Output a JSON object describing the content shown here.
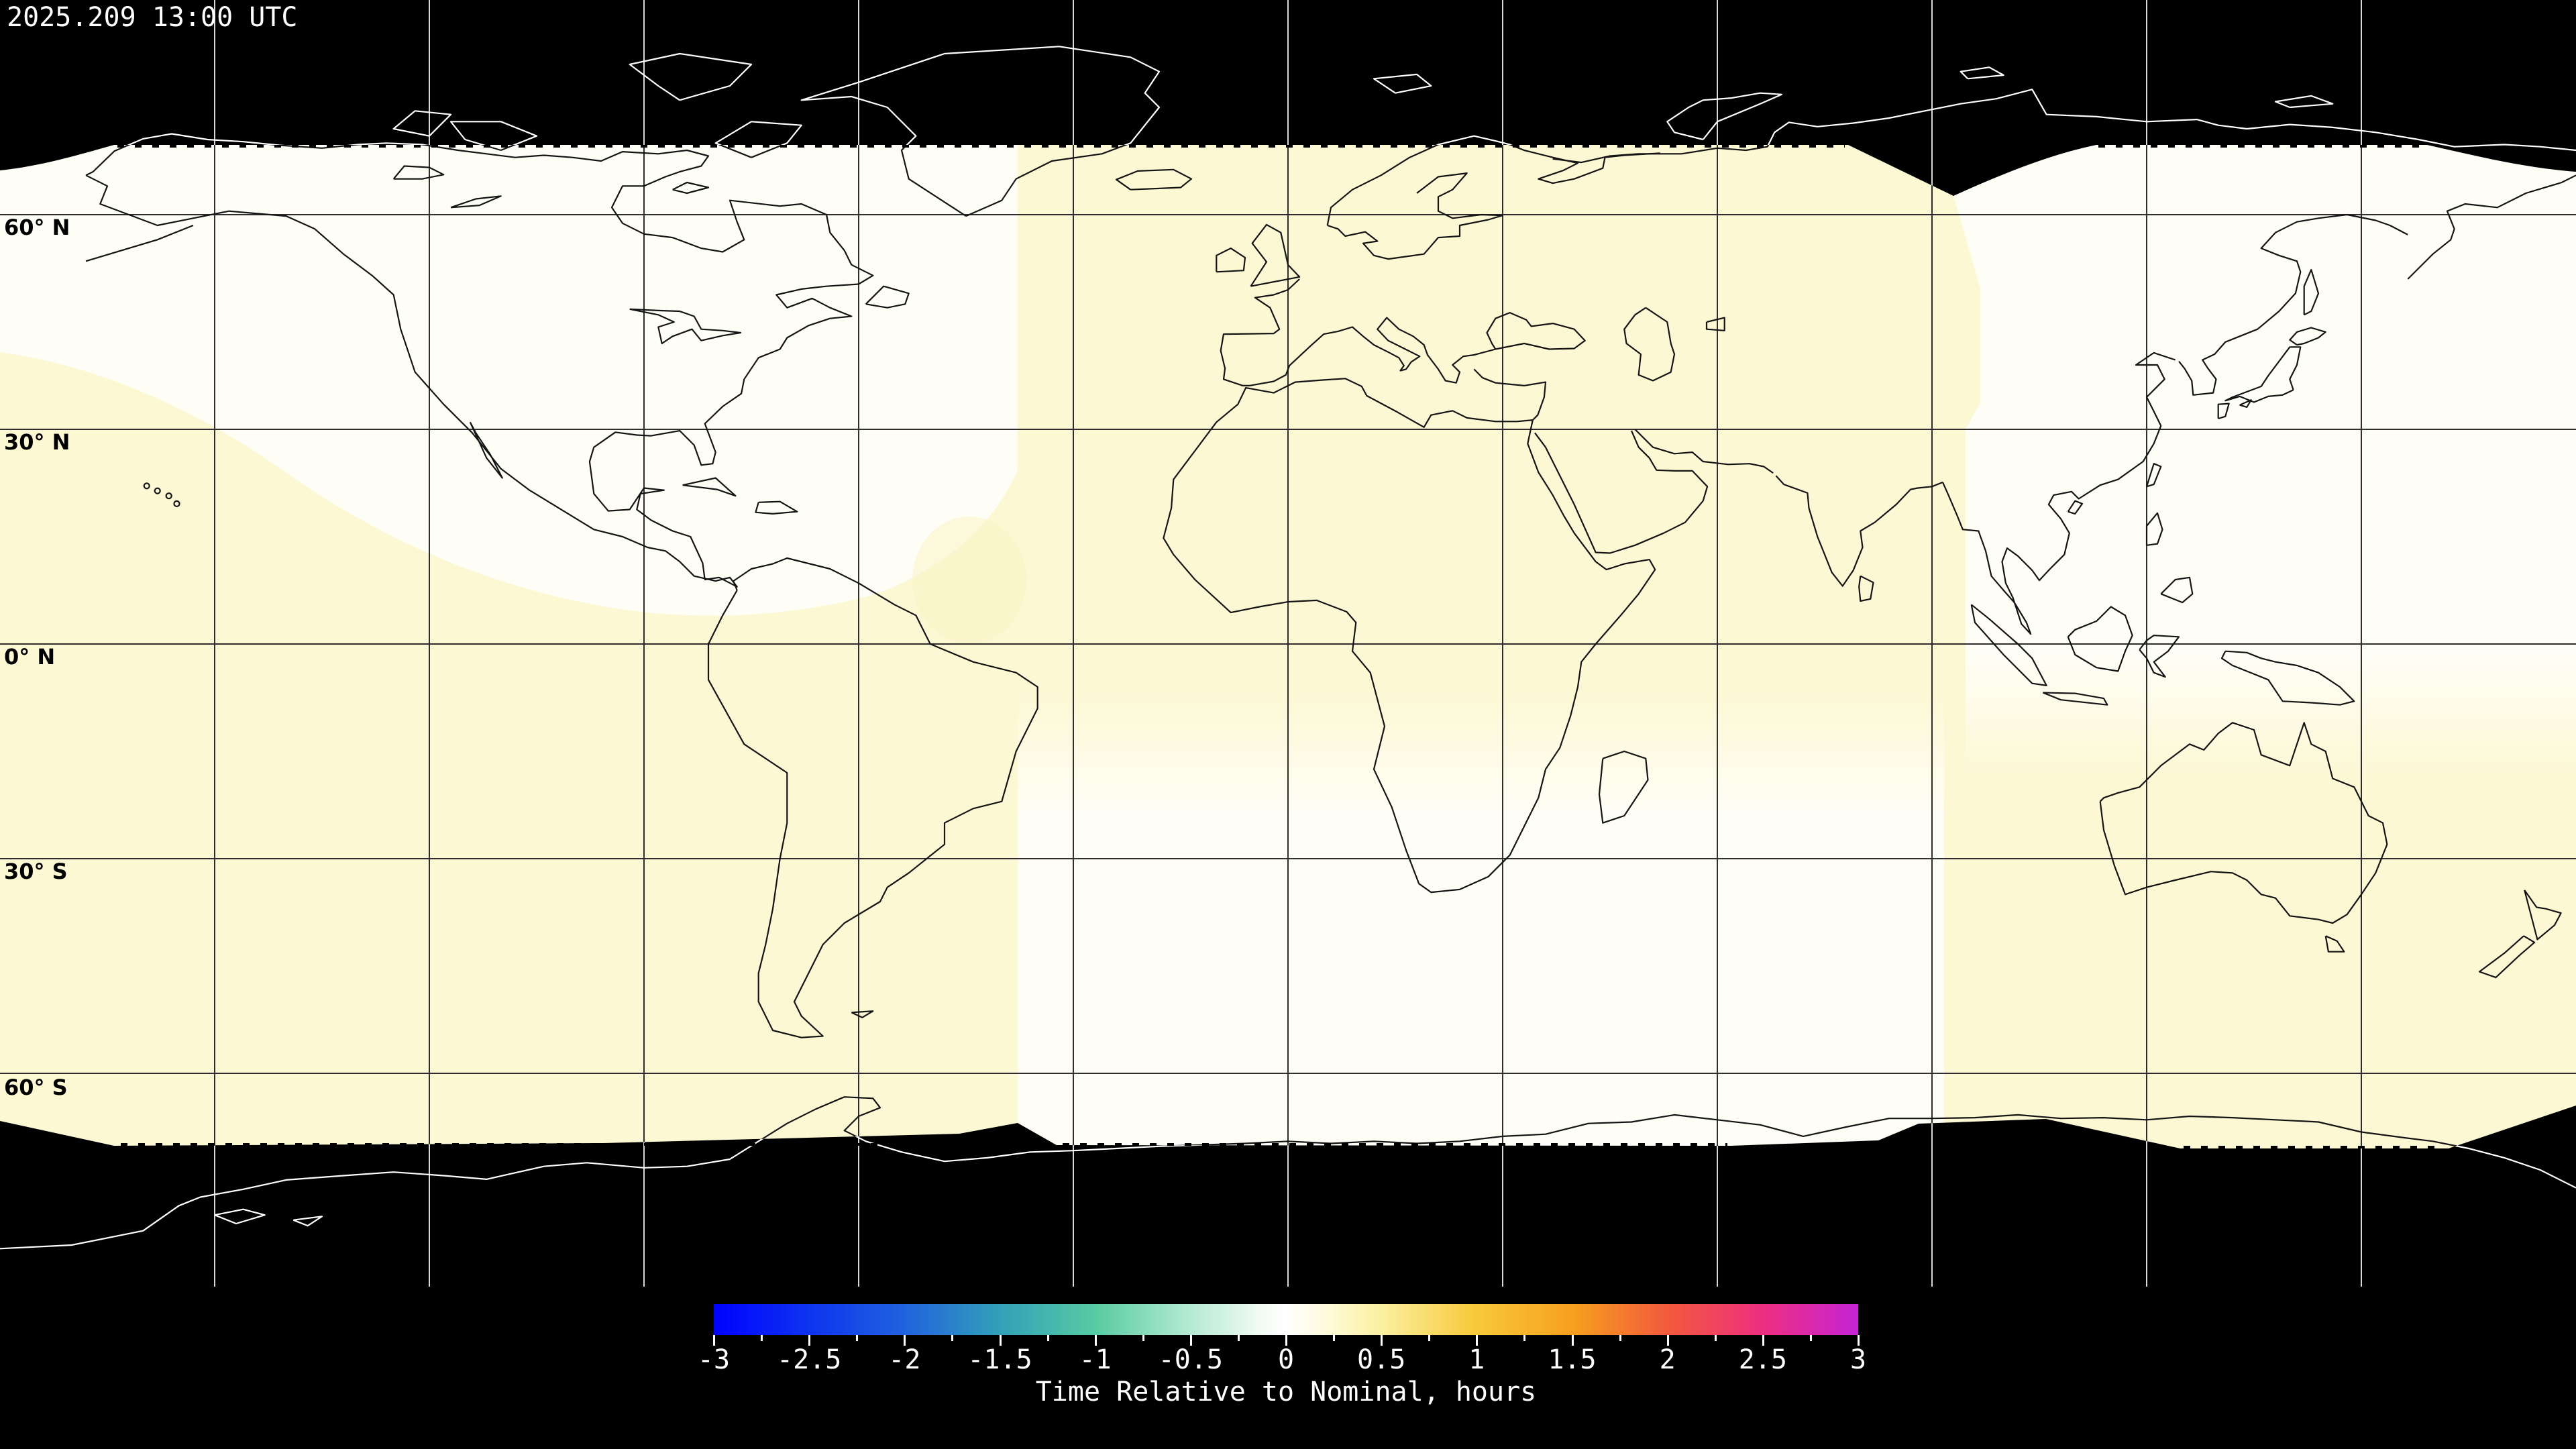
{
  "window": {
    "timestamp": "2025.209 13:00 UTC"
  },
  "map": {
    "latitude_labels": [
      "60° N",
      "30° N",
      "0° N",
      "30° S",
      "60° S"
    ],
    "grid": {
      "lon_spacing_deg": 30,
      "lat_spacing_deg": 30
    },
    "colors": {
      "no_data": "#000000",
      "nominal_white": "#FFFEF6",
      "slightly_late_yellow": "#FCF8D4",
      "gridline_on_data": "#2E2E2E",
      "gridline_on_nodata": "#D8D8D8",
      "coastline_on_data": "#141414",
      "coastline_on_nodata": "#FFFFFF"
    }
  },
  "colorbar": {
    "caption": "Time Relative to Nominal, hours",
    "min": -3,
    "max": 3,
    "tick_step_labeled": 0.5,
    "tick_step_minor": 0.25,
    "tick_labels": [
      "-3",
      "-2.5",
      "-2",
      "-1.5",
      "-1",
      "-0.5",
      "0",
      "0.5",
      "1",
      "1.5",
      "2",
      "2.5",
      "3"
    ],
    "gradient_stops": [
      {
        "value": -3,
        "color": "#0000FE"
      },
      {
        "value": -2.6,
        "color": "#0A2AF2"
      },
      {
        "value": -2,
        "color": "#2063DE"
      },
      {
        "value": -1.5,
        "color": "#33A0B8"
      },
      {
        "value": -1,
        "color": "#57CBA2"
      },
      {
        "value": -0.5,
        "color": "#B5EAD3"
      },
      {
        "value": -0.15,
        "color": "#EFFAF2"
      },
      {
        "value": 0,
        "color": "#FFFFFF"
      },
      {
        "value": 0.2,
        "color": "#FEFBDE"
      },
      {
        "value": 0.5,
        "color": "#FAF0A0"
      },
      {
        "value": 1,
        "color": "#F8C83A"
      },
      {
        "value": 1.5,
        "color": "#F6A01E"
      },
      {
        "value": 2,
        "color": "#F25A3C"
      },
      {
        "value": 2.5,
        "color": "#ED2F80"
      },
      {
        "value": 3,
        "color": "#C623D6"
      }
    ]
  }
}
